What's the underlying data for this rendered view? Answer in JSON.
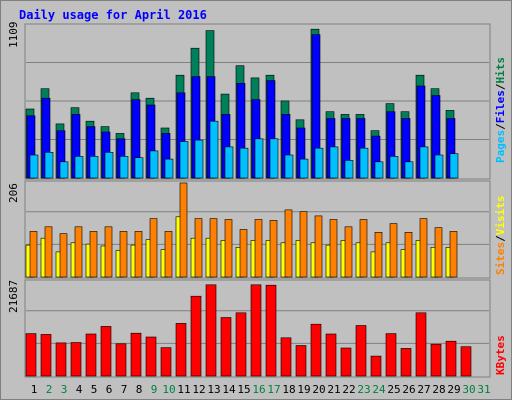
{
  "title": "Daily usage for April 2016",
  "panels": {
    "top": {
      "max_label": "1109",
      "ylim": [
        0,
        1109
      ],
      "legend": [
        {
          "label": "Pages",
          "color": "#00bfff"
        },
        {
          "label": "Files",
          "color": "#0000ff"
        },
        {
          "label": "Hits",
          "color": "#008040"
        }
      ],
      "separators": [
        "/",
        "/"
      ]
    },
    "mid": {
      "max_label": "206",
      "ylim": [
        0,
        206
      ],
      "legend": [
        {
          "label": "Sites",
          "color": "#ff8000"
        },
        {
          "label": "Visits",
          "color": "#ffff00"
        }
      ],
      "separators": [
        "/"
      ]
    },
    "bottom": {
      "max_label": "21687",
      "ylim": [
        0,
        21687
      ],
      "legend": [
        {
          "label": "KBytes",
          "color": "#ff0000"
        }
      ],
      "separators": []
    }
  },
  "colors": {
    "hits": "#00805a",
    "files": "#0000ff",
    "pages": "#00bfff",
    "visits": "#ffff00",
    "sites": "#ff8000",
    "kbytes": "#ff0000",
    "weekend_label": "#008040",
    "weekday_label": "#000000"
  },
  "chart_data": {
    "type": "bar",
    "title": "Daily usage for April 2016",
    "categories": [
      "1",
      "2",
      "3",
      "4",
      "5",
      "6",
      "7",
      "8",
      "9",
      "10",
      "11",
      "12",
      "13",
      "14",
      "15",
      "16",
      "17",
      "18",
      "19",
      "20",
      "21",
      "22",
      "23",
      "24",
      "25",
      "26",
      "27",
      "28",
      "29",
      "30",
      "31"
    ],
    "weekend_days": [
      "2",
      "3",
      "9",
      "10",
      "16",
      "17",
      "23",
      "24",
      "30",
      "31"
    ],
    "series": [
      {
        "name": "Hits",
        "values": [
          510,
          660,
          400,
          520,
          420,
          380,
          330,
          630,
          590,
          370,
          760,
          960,
          1090,
          620,
          830,
          740,
          760,
          570,
          430,
          1100,
          490,
          470,
          470,
          350,
          550,
          490,
          760,
          660,
          500,
          null,
          null
        ]
      },
      {
        "name": "Files",
        "values": [
          460,
          590,
          350,
          470,
          380,
          340,
          290,
          580,
          540,
          330,
          630,
          750,
          750,
          470,
          700,
          580,
          720,
          470,
          370,
          1060,
          440,
          440,
          440,
          310,
          490,
          440,
          680,
          610,
          440,
          null,
          null
        ]
      },
      {
        "name": "Pages",
        "values": [
          170,
          190,
          120,
          160,
          160,
          190,
          160,
          150,
          200,
          140,
          270,
          280,
          420,
          230,
          220,
          290,
          290,
          170,
          140,
          220,
          230,
          130,
          220,
          120,
          160,
          120,
          230,
          170,
          180,
          null,
          null
        ]
      },
      {
        "name": "Visits",
        "values": [
          70,
          85,
          55,
          75,
          72,
          68,
          58,
          70,
          82,
          60,
          132,
          85,
          85,
          80,
          65,
          80,
          80,
          75,
          80,
          75,
          70,
          80,
          75,
          55,
          75,
          60,
          80,
          65,
          65,
          null,
          null
        ]
      },
      {
        "name": "Sites",
        "values": [
          100,
          110,
          95,
          110,
          100,
          110,
          100,
          100,
          128,
          100,
          206,
          128,
          128,
          126,
          104,
          126,
          124,
          147,
          143,
          134,
          126,
          110,
          126,
          98,
          117,
          98,
          128,
          108,
          100,
          null,
          null
        ]
      },
      {
        "name": "KBytes",
        "values": [
          10000,
          9800,
          7800,
          7900,
          9900,
          11700,
          7600,
          10100,
          9200,
          6700,
          12400,
          18800,
          21500,
          13800,
          14900,
          21500,
          21400,
          9000,
          7200,
          12200,
          9900,
          6600,
          11900,
          4700,
          10000,
          6500,
          14900,
          7500,
          8200,
          6900,
          null
        ]
      }
    ]
  },
  "x_labels": [
    "1",
    "2",
    "3",
    "4",
    "5",
    "6",
    "7",
    "8",
    "9",
    "10",
    "11",
    "12",
    "13",
    "14",
    "15",
    "16",
    "17",
    "18",
    "19",
    "20",
    "21",
    "22",
    "23",
    "24",
    "25",
    "26",
    "27",
    "28",
    "29",
    "30",
    "31"
  ]
}
